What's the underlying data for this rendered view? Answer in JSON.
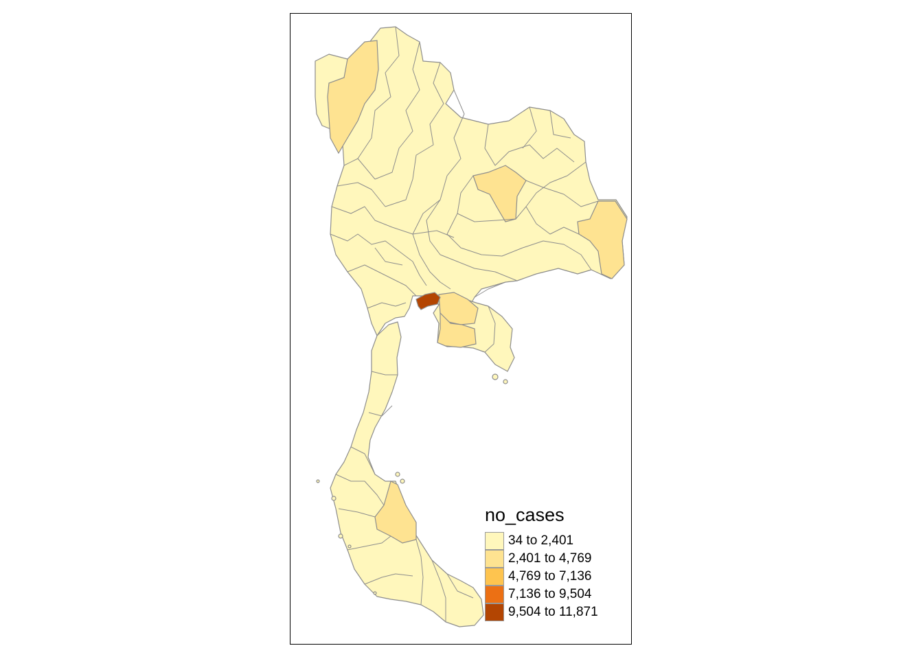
{
  "legend": {
    "title": "no_cases",
    "classes": [
      {
        "label": "34 to 2,401",
        "color": "#FFF7BC"
      },
      {
        "label": "2,401 to 4,769",
        "color": "#FEE391"
      },
      {
        "label": "4,769 to 7,136",
        "color": "#FEC44F"
      },
      {
        "label": "7,136 to 9,504",
        "color": "#EC7014"
      },
      {
        "label": "9,504 to 11,871",
        "color": "#B34502"
      }
    ]
  },
  "highlighted_regions": [
    {
      "region": "northwest-province",
      "class": "2,401 to 4,769"
    },
    {
      "region": "northeast-central-province",
      "class": "2,401 to 4,769"
    },
    {
      "region": "northeast-east-province",
      "class": "2,401 to 4,769"
    },
    {
      "region": "east-province-1",
      "class": "2,401 to 4,769"
    },
    {
      "region": "east-province-2",
      "class": "2,401 to 4,769"
    },
    {
      "region": "south-province",
      "class": "2,401 to 4,769"
    },
    {
      "region": "bangkok",
      "class": "9,504 to 11,871"
    }
  ]
}
